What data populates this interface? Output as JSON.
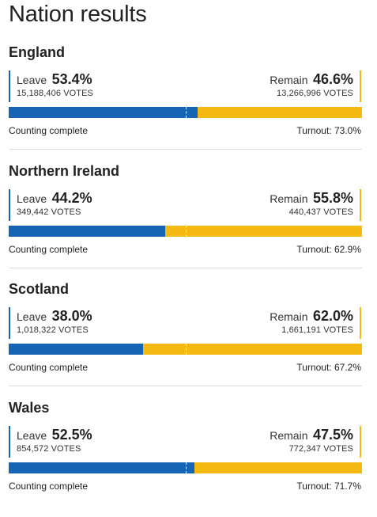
{
  "page": {
    "title": "Nation results"
  },
  "colors": {
    "leave": "#1565b4",
    "remain": "#f5b914"
  },
  "chart_data": {
    "type": "bar",
    "stacked": true,
    "orientation": "horizontal",
    "title": "Nation results",
    "xlim": [
      0,
      100
    ],
    "categories": [
      "England",
      "Northern Ireland",
      "Scotland",
      "Wales"
    ],
    "series": [
      {
        "name": "Leave",
        "values": [
          53.4,
          44.2,
          38.0,
          52.5
        ]
      },
      {
        "name": "Remain",
        "values": [
          46.6,
          55.8,
          62.0,
          47.5
        ]
      }
    ]
  },
  "nations": [
    {
      "name": "England",
      "leave": {
        "label": "Leave",
        "pct": "53.4%",
        "value": 53.4,
        "votes": "15,188,406 VOTES"
      },
      "remain": {
        "label": "Remain",
        "pct": "46.6%",
        "value": 46.6,
        "votes": "13,266,996 VOTES"
      },
      "status": "Counting complete",
      "turnout": "Turnout: 73.0%"
    },
    {
      "name": "Northern Ireland",
      "leave": {
        "label": "Leave",
        "pct": "44.2%",
        "value": 44.2,
        "votes": "349,442 VOTES"
      },
      "remain": {
        "label": "Remain",
        "pct": "55.8%",
        "value": 55.8,
        "votes": "440,437 VOTES"
      },
      "status": "Counting complete",
      "turnout": "Turnout: 62.9%"
    },
    {
      "name": "Scotland",
      "leave": {
        "label": "Leave",
        "pct": "38.0%",
        "value": 38.0,
        "votes": "1,018,322 VOTES"
      },
      "remain": {
        "label": "Remain",
        "pct": "62.0%",
        "value": 62.0,
        "votes": "1,661,191 VOTES"
      },
      "status": "Counting complete",
      "turnout": "Turnout: 67.2%"
    },
    {
      "name": "Wales",
      "leave": {
        "label": "Leave",
        "pct": "52.5%",
        "value": 52.5,
        "votes": "854,572 VOTES"
      },
      "remain": {
        "label": "Remain",
        "pct": "47.5%",
        "value": 47.5,
        "votes": "772,347 VOTES"
      },
      "status": "Counting complete",
      "turnout": "Turnout: 71.7%"
    }
  ]
}
